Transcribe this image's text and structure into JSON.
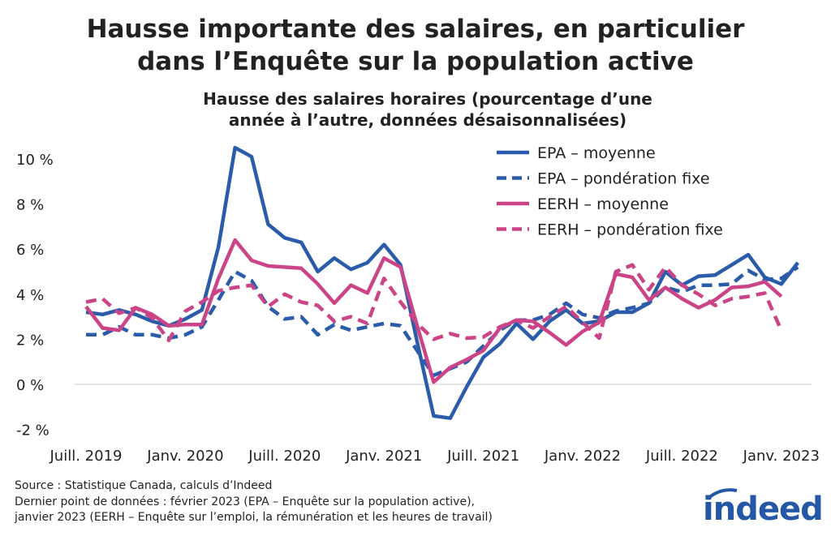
{
  "chart_data": {
    "type": "line",
    "title": "Hausse importante des salaires, en particulier dans l’Enquête sur la population active",
    "title_lines": [
      "Hausse importante des salaires, en particulier",
      "dans l’Enquête sur la population active"
    ],
    "subtitle_lines": [
      "Hausse des salaires horaires (pourcentage d’une",
      "année à l’autre, données désaisonnalisées)"
    ],
    "xlabel": "",
    "ylabel": "",
    "ylim": [
      -2,
      10.5
    ],
    "yticks": [
      -2,
      0,
      2,
      4,
      6,
      8,
      10
    ],
    "ytick_labels": [
      "-2 %",
      "0 %",
      "2 %",
      "4 %",
      "6 %",
      "8 %",
      "10 %"
    ],
    "x_start": "2019-07",
    "x_months": 44,
    "xtick_indices": [
      0,
      6,
      12,
      18,
      24,
      30,
      36,
      42
    ],
    "xtick_labels": [
      "Juill. 2019",
      "Janv. 2020",
      "Juill. 2020",
      "Janv. 2021",
      "Juill. 2021",
      "Janv. 2022",
      "Juill. 2022",
      "Janv. 2023"
    ],
    "legend_position": "top-right",
    "series": [
      {
        "name": "EPA – moyenne",
        "color": "#2a5caa",
        "dashed": false,
        "values": [
          3.2,
          3.1,
          3.3,
          3.1,
          2.8,
          2.6,
          2.9,
          3.3,
          6.1,
          10.5,
          10.1,
          7.1,
          6.5,
          6.3,
          5.0,
          5.6,
          5.1,
          5.4,
          6.2,
          5.3,
          1.9,
          -1.4,
          -1.5,
          -0.1,
          1.2,
          1.8,
          2.7,
          2.0,
          2.8,
          3.3,
          2.7,
          2.8,
          3.2,
          3.2,
          3.6,
          5.0,
          4.4,
          4.8,
          4.85,
          5.3,
          5.75,
          4.75,
          4.45,
          5.4
        ]
      },
      {
        "name": "EPA – pondération fixe",
        "color": "#2a5caa",
        "dashed": true,
        "values": [
          2.2,
          2.2,
          2.55,
          2.2,
          2.2,
          2.05,
          2.2,
          2.55,
          3.75,
          5.0,
          4.6,
          3.45,
          2.9,
          3.0,
          2.2,
          2.65,
          2.4,
          2.55,
          2.7,
          2.6,
          1.5,
          0.4,
          0.7,
          1.0,
          1.7,
          2.4,
          2.85,
          2.85,
          3.1,
          3.6,
          3.1,
          2.95,
          3.25,
          3.4,
          3.6,
          4.3,
          4.1,
          4.4,
          4.4,
          4.45,
          5.05,
          4.65,
          4.7,
          5.2
        ]
      },
      {
        "name": "EERH – moyenne",
        "color": "#cc4488",
        "dashed": false,
        "values": [
          3.45,
          2.5,
          2.4,
          3.4,
          3.1,
          2.6,
          2.65,
          2.65,
          4.7,
          6.4,
          5.5,
          5.25,
          5.2,
          5.15,
          4.45,
          3.6,
          4.4,
          4.05,
          5.6,
          5.2,
          2.6,
          0.1,
          0.75,
          1.1,
          1.5,
          2.5,
          2.85,
          2.8,
          2.3,
          1.75,
          2.35,
          2.75,
          4.9,
          4.75,
          3.75,
          4.3,
          3.8,
          3.4,
          3.75,
          4.3,
          4.35,
          4.55,
          3.9
        ]
      },
      {
        "name": "EERH – pondération fixe",
        "color": "#cc4488",
        "dashed": true,
        "values": [
          3.65,
          3.8,
          3.15,
          3.4,
          2.95,
          1.95,
          3.25,
          3.65,
          4.15,
          4.3,
          4.4,
          3.45,
          4.0,
          3.65,
          3.5,
          2.8,
          3.0,
          2.7,
          4.7,
          3.65,
          2.7,
          2.0,
          2.25,
          2.05,
          2.1,
          2.55,
          2.85,
          2.5,
          3.0,
          3.45,
          2.75,
          2.05,
          5.0,
          5.3,
          4.2,
          5.2,
          4.4,
          4.0,
          3.5,
          3.8,
          3.9,
          4.05,
          2.4
        ]
      }
    ]
  },
  "footer": {
    "source": "Source : Statistique Canada, calculs d’Indeed",
    "note_line1": "Dernier point de données : février 2023 (EPA – Enquête sur la population active),",
    "note_line2": "janvier 2023 (EERH – Enquête sur l’emploi, la rémunération et les heures de travail)",
    "logo": "indeed"
  }
}
